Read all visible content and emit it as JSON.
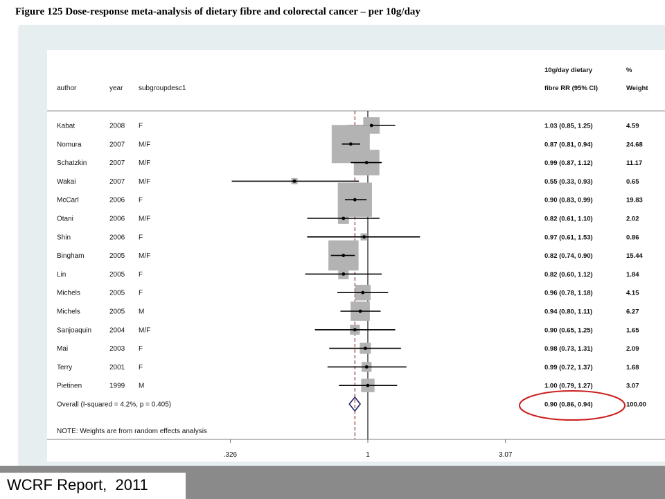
{
  "figure_title": "Figure 125 Dose-response meta-analysis of dietary fibre and colorectal cancer – per 10g/day",
  "footer_label": "WCRF Report,  2011",
  "chart_data": {
    "type": "forest",
    "columns": {
      "author": "author",
      "year": "year",
      "subgroup": "subgroupdesc1",
      "rr_line1": "10g/day dietary",
      "rr_line2": "fibre RR (95% CI)",
      "weight_line1": "%",
      "weight_line2": "Weight"
    },
    "x_scale": "log",
    "x_ticks": [
      {
        "value": 0.326,
        "label": ".326"
      },
      {
        "value": 1,
        "label": "1"
      },
      {
        "value": 3.07,
        "label": "3.07"
      }
    ],
    "studies": [
      {
        "author": "Kabat",
        "year": "2008",
        "subgroup": "F",
        "rr": 1.03,
        "lower": 0.85,
        "upper": 1.25,
        "ci_text": "1.03 (0.85, 1.25)",
        "weight": 4.59,
        "weight_text": "4.59"
      },
      {
        "author": "Nomura",
        "year": "2007",
        "subgroup": "M/F",
        "rr": 0.87,
        "lower": 0.81,
        "upper": 0.94,
        "ci_text": "0.87 (0.81, 0.94)",
        "weight": 24.68,
        "weight_text": "24.68"
      },
      {
        "author": "Schatzkin",
        "year": "2007",
        "subgroup": "M/F",
        "rr": 0.99,
        "lower": 0.87,
        "upper": 1.12,
        "ci_text": "0.99 (0.87, 1.12)",
        "weight": 11.17,
        "weight_text": "11.17"
      },
      {
        "author": "Wakai",
        "year": "2007",
        "subgroup": "M/F",
        "rr": 0.55,
        "lower": 0.33,
        "upper": 0.93,
        "ci_text": "0.55 (0.33, 0.93)",
        "weight": 0.65,
        "weight_text": "0.65"
      },
      {
        "author": "McCarl",
        "year": "2006",
        "subgroup": "F",
        "rr": 0.9,
        "lower": 0.83,
        "upper": 0.99,
        "ci_text": "0.90 (0.83, 0.99)",
        "weight": 19.83,
        "weight_text": "19.83"
      },
      {
        "author": "Otani",
        "year": "2006",
        "subgroup": "M/F",
        "rr": 0.82,
        "lower": 0.61,
        "upper": 1.1,
        "ci_text": "0.82 (0.61, 1.10)",
        "weight": 2.02,
        "weight_text": "2.02"
      },
      {
        "author": "Shin",
        "year": "2006",
        "subgroup": "F",
        "rr": 0.97,
        "lower": 0.61,
        "upper": 1.53,
        "ci_text": "0.97 (0.61, 1.53)",
        "weight": 0.86,
        "weight_text": "0.86"
      },
      {
        "author": "Bingham",
        "year": "2005",
        "subgroup": "M/F",
        "rr": 0.82,
        "lower": 0.74,
        "upper": 0.9,
        "ci_text": "0.82 (0.74, 0.90)",
        "weight": 15.44,
        "weight_text": "15.44"
      },
      {
        "author": "Lin",
        "year": "2005",
        "subgroup": "F",
        "rr": 0.82,
        "lower": 0.6,
        "upper": 1.12,
        "ci_text": "0.82 (0.60, 1.12)",
        "weight": 1.84,
        "weight_text": "1.84"
      },
      {
        "author": "Michels",
        "year": "2005",
        "subgroup": "F",
        "rr": 0.96,
        "lower": 0.78,
        "upper": 1.18,
        "ci_text": "0.96 (0.78, 1.18)",
        "weight": 4.15,
        "weight_text": "4.15"
      },
      {
        "author": "Michels",
        "year": "2005",
        "subgroup": "M",
        "rr": 0.94,
        "lower": 0.8,
        "upper": 1.11,
        "ci_text": "0.94 (0.80, 1.11)",
        "weight": 6.27,
        "weight_text": "6.27"
      },
      {
        "author": "Sanjoaquin",
        "year": "2004",
        "subgroup": "M/F",
        "rr": 0.9,
        "lower": 0.65,
        "upper": 1.25,
        "ci_text": "0.90 (0.65, 1.25)",
        "weight": 1.65,
        "weight_text": "1.65"
      },
      {
        "author": "Mai",
        "year": "2003",
        "subgroup": "F",
        "rr": 0.98,
        "lower": 0.73,
        "upper": 1.31,
        "ci_text": "0.98 (0.73, 1.31)",
        "weight": 2.09,
        "weight_text": "2.09"
      },
      {
        "author": "Terry",
        "year": "2001",
        "subgroup": "F",
        "rr": 0.99,
        "lower": 0.72,
        "upper": 1.37,
        "ci_text": "0.99 (0.72, 1.37)",
        "weight": 1.68,
        "weight_text": "1.68"
      },
      {
        "author": "Pietinen",
        "year": "1999",
        "subgroup": "M",
        "rr": 1.0,
        "lower": 0.79,
        "upper": 1.27,
        "ci_text": "1.00 (0.79, 1.27)",
        "weight": 3.07,
        "weight_text": "3.07"
      }
    ],
    "overall": {
      "label": "Overall  (I-squared = 4.2%, p = 0.405)",
      "rr": 0.9,
      "lower": 0.86,
      "upper": 0.94,
      "ci_text": "0.90 (0.86, 0.94)",
      "weight_text": "100.00",
      "highlighted": true
    },
    "note": "NOTE: Weights are from random effects analysis",
    "reference_line": 1,
    "overall_line": 0.9,
    "colors": {
      "weight_box": "#b3b3b3",
      "line": "#000000",
      "overall_line": "#8b1a1a",
      "diamond": "#1f1f6b",
      "highlight": "#cc1f1f"
    }
  }
}
